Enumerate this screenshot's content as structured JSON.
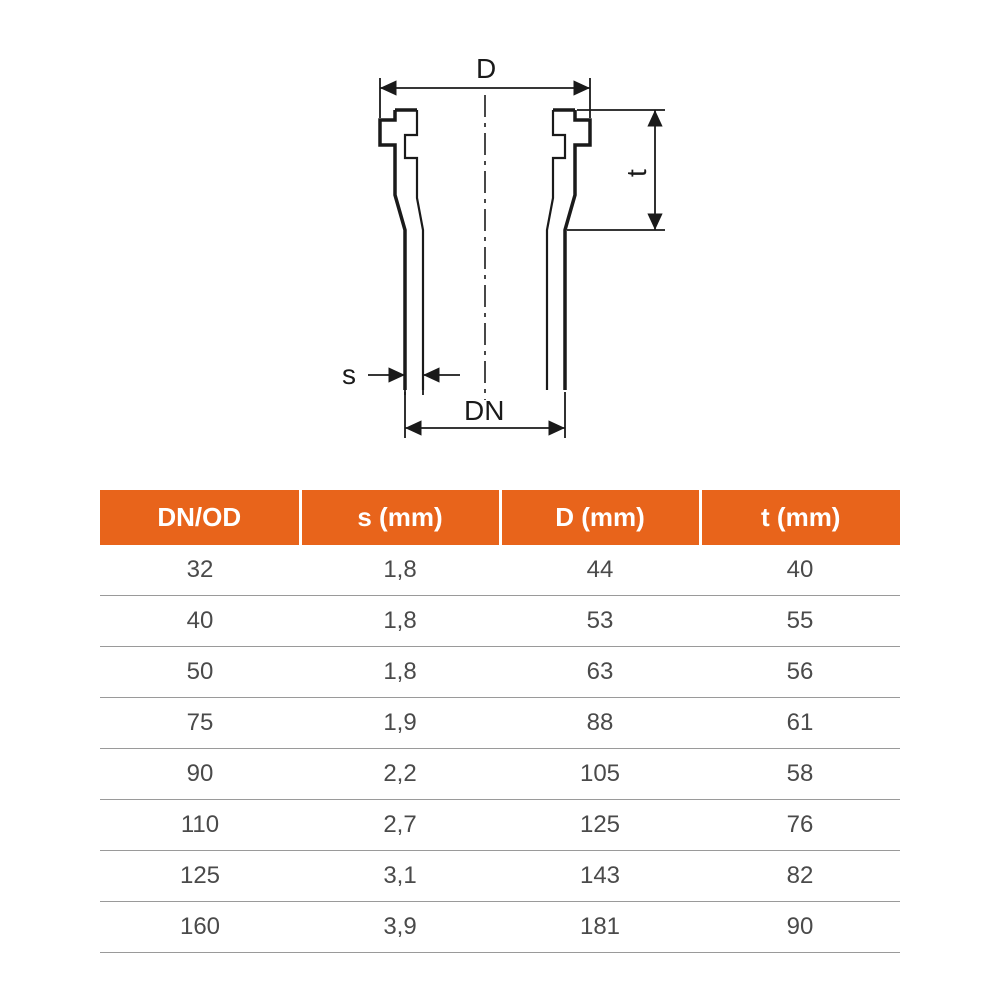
{
  "diagram": {
    "labels": {
      "D": "D",
      "t": "t",
      "s": "s",
      "DN": "DN"
    },
    "colors": {
      "stroke": "#1a1a1a",
      "text": "#1a1a1a",
      "centerline": "#1a1a1a"
    },
    "stroke_width_outer": 3.5,
    "stroke_width_inner": 2.2,
    "stroke_width_dim": 1.8,
    "arrow_size": 14
  },
  "table": {
    "type": "table",
    "header_bg": "#e8641b",
    "header_fg": "#ffffff",
    "row_fg": "#4a4a4a",
    "row_border": "#9a9a9a",
    "header_fontsize": 26,
    "row_fontsize": 24,
    "columns": [
      "DN/OD",
      "s (mm)",
      "D (mm)",
      "t (mm)"
    ],
    "rows": [
      [
        "32",
        "1,8",
        "44",
        "40"
      ],
      [
        "40",
        "1,8",
        "53",
        "55"
      ],
      [
        "50",
        "1,8",
        "63",
        "56"
      ],
      [
        "75",
        "1,9",
        "88",
        "61"
      ],
      [
        "90",
        "2,2",
        "105",
        "58"
      ],
      [
        "110",
        "2,7",
        "125",
        "76"
      ],
      [
        "125",
        "3,1",
        "143",
        "82"
      ],
      [
        "160",
        "3,9",
        "181",
        "90"
      ]
    ]
  }
}
